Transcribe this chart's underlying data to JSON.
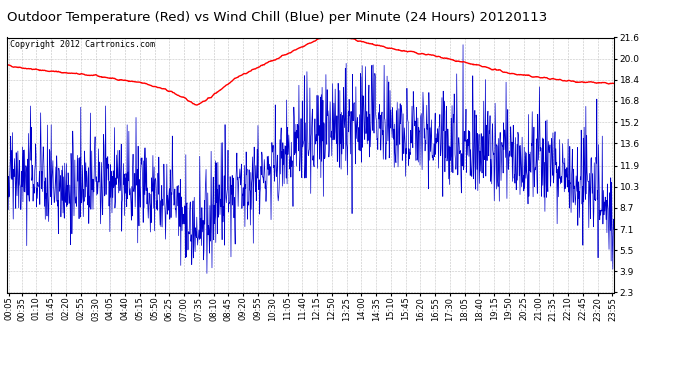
{
  "title": "Outdoor Temperature (Red) vs Wind Chill (Blue) per Minute (24 Hours) 20120113",
  "copyright_text": "Copyright 2012 Cartronics.com",
  "yticks": [
    2.3,
    3.9,
    5.5,
    7.1,
    8.7,
    10.3,
    11.9,
    13.6,
    15.2,
    16.8,
    18.4,
    20.0,
    21.6
  ],
  "ymin": 2.3,
  "ymax": 21.6,
  "temp_color": "#ff0000",
  "wind_color": "#0000cc",
  "bg_color": "#ffffff",
  "grid_color": "#aaaaaa",
  "title_fontsize": 9.5,
  "tick_labelsize": 6.5,
  "total_minutes": 1440
}
